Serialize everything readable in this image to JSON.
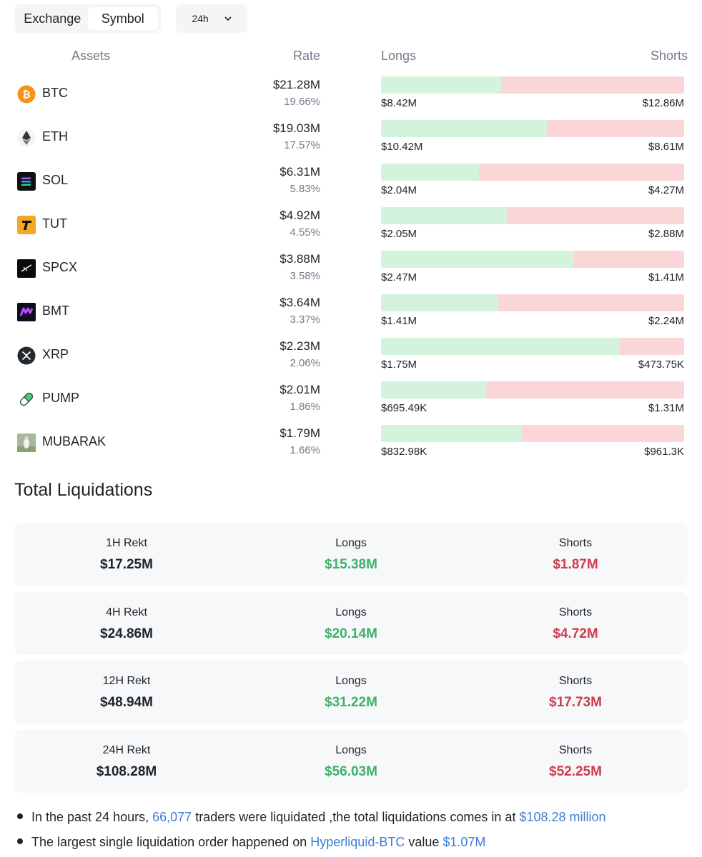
{
  "controls": {
    "toggle": [
      {
        "label": "Exchange",
        "active": false
      },
      {
        "label": "Symbol",
        "active": true
      }
    ],
    "range": "24h",
    "range_icon": "chevron-down-icon"
  },
  "table": {
    "headers": {
      "assets": "Assets",
      "rate": "Rate",
      "longs": "Longs",
      "shorts": "Shorts"
    },
    "colors": {
      "long_bar": "#d3f3dc",
      "short_bar": "#fbd6d8"
    },
    "rows": [
      {
        "symbol": "BTC",
        "icon": "bitcoin-icon",
        "rate": "$21.28M",
        "pct": "19.66%",
        "longs": "$8.42M",
        "shorts": "$12.86M",
        "long_ratio": 0.396
      },
      {
        "symbol": "ETH",
        "icon": "ethereum-icon",
        "rate": "$19.03M",
        "pct": "17.57%",
        "longs": "$10.42M",
        "shorts": "$8.61M",
        "long_ratio": 0.548
      },
      {
        "symbol": "SOL",
        "icon": "solana-icon",
        "rate": "$6.31M",
        "pct": "5.83%",
        "longs": "$2.04M",
        "shorts": "$4.27M",
        "long_ratio": 0.323
      },
      {
        "symbol": "TUT",
        "icon": "tut-icon",
        "rate": "$4.92M",
        "pct": "4.55%",
        "longs": "$2.05M",
        "shorts": "$2.88M",
        "long_ratio": 0.416
      },
      {
        "symbol": "SPCX",
        "icon": "spcx-icon",
        "rate": "$3.88M",
        "pct": "3.58%",
        "longs": "$2.47M",
        "shorts": "$1.41M",
        "long_ratio": 0.637
      },
      {
        "symbol": "BMT",
        "icon": "bmt-icon",
        "rate": "$3.64M",
        "pct": "3.37%",
        "longs": "$1.41M",
        "shorts": "$2.24M",
        "long_ratio": 0.386
      },
      {
        "symbol": "XRP",
        "icon": "xrp-icon",
        "rate": "$2.23M",
        "pct": "2.06%",
        "longs": "$1.75M",
        "shorts": "$473.75K",
        "long_ratio": 0.787
      },
      {
        "symbol": "PUMP",
        "icon": "pill-icon",
        "rate": "$2.01M",
        "pct": "1.86%",
        "longs": "$695.49K",
        "shorts": "$1.31M",
        "long_ratio": 0.347
      },
      {
        "symbol": "MUBARAK",
        "icon": "mubarak-icon",
        "rate": "$1.79M",
        "pct": "1.66%",
        "longs": "$832.98K",
        "shorts": "$961.3K",
        "long_ratio": 0.464
      }
    ]
  },
  "total": {
    "title": "Total Liquidations",
    "colors": {
      "long": "#3fb06a",
      "short": "#cf3b4e"
    },
    "cards": [
      {
        "label": "1H Rekt",
        "total": "$17.25M",
        "longs_label": "Longs",
        "longs": "$15.38M",
        "shorts_label": "Shorts",
        "shorts": "$1.87M"
      },
      {
        "label": "4H Rekt",
        "total": "$24.86M",
        "longs_label": "Longs",
        "longs": "$20.14M",
        "shorts_label": "Shorts",
        "shorts": "$4.72M"
      },
      {
        "label": "12H Rekt",
        "total": "$48.94M",
        "longs_label": "Longs",
        "longs": "$31.22M",
        "shorts_label": "Shorts",
        "shorts": "$17.73M"
      },
      {
        "label": "24H Rekt",
        "total": "$108.28M",
        "longs_label": "Longs",
        "longs": "$56.03M",
        "shorts_label": "Shorts",
        "shorts": "$52.25M"
      }
    ]
  },
  "summary": {
    "line1_a": "In the past 24 hours, ",
    "line1_traders": "66,077",
    "line1_b": " traders were liquidated ,the total liquidations comes in at ",
    "line1_amount": "$108.28 million",
    "line2_a": "The largest single liquidation order happened on ",
    "line2_pair": "Hyperliquid-BTC",
    "line2_b": " value ",
    "line2_value": "$1.07M",
    "link_color": "#3c7ed4"
  }
}
